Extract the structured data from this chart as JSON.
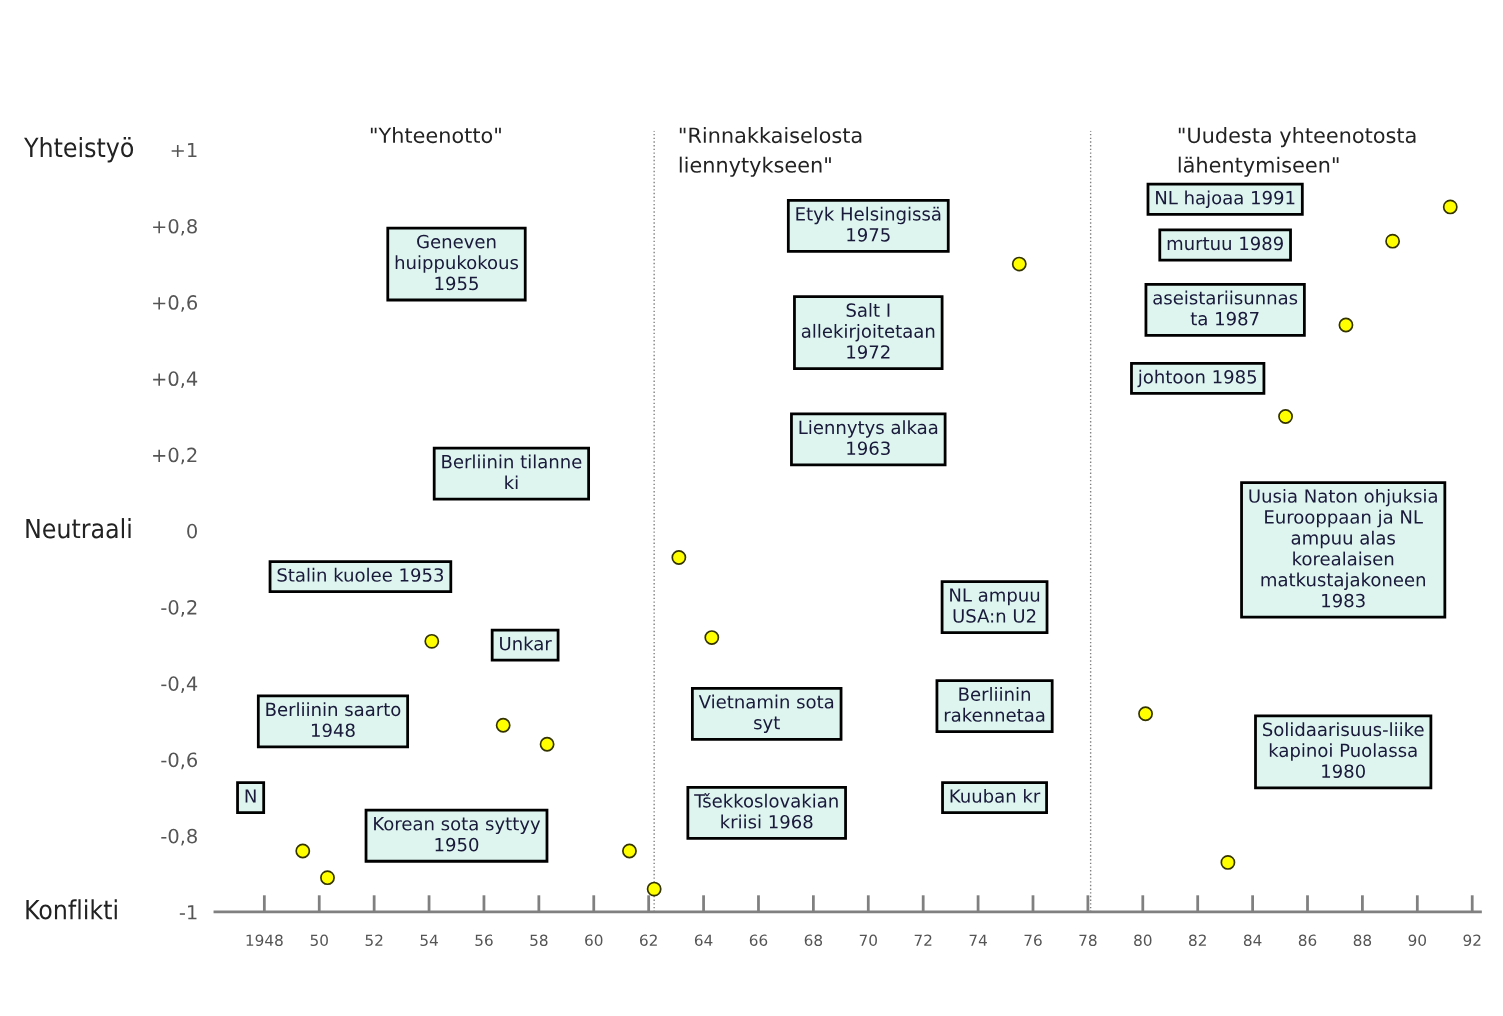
{
  "chart_data": {
    "type": "scatter",
    "marker": "circle",
    "color": "#ffff00",
    "x": [
      1949.4,
      1950.3,
      1954.1,
      1956.7,
      1958.3,
      1961.3,
      1962.2,
      1963.1,
      1964.3,
      1975.5,
      1980.1,
      1983.1,
      1985.2,
      1987.4,
      1989.1,
      1991.2
    ],
    "values": [
      -0.84,
      -0.91,
      -0.29,
      -0.51,
      -0.56,
      -0.84,
      -0.94,
      -0.07,
      -0.28,
      0.7,
      -0.48,
      -0.87,
      0.3,
      0.54,
      0.76,
      0.85
    ],
    "xlim": [
      1946.2,
      1992.3
    ],
    "ylim": [
      -1,
      1.05
    ],
    "xticks": [
      1948,
      {
        "value": 1950,
        "label": "50"
      },
      {
        "value": 1952,
        "label": "52"
      },
      {
        "value": 1954,
        "label": "54"
      },
      {
        "value": 1956,
        "label": "56"
      },
      {
        "value": 1958,
        "label": "58"
      },
      {
        "value": 1960,
        "label": "60"
      },
      {
        "value": 1962,
        "label": "62"
      },
      {
        "value": 1964,
        "label": "64"
      },
      {
        "value": 1966,
        "label": "66"
      },
      {
        "value": 1968,
        "label": "68"
      },
      {
        "value": 1970,
        "label": "70"
      },
      {
        "value": 1972,
        "label": "72"
      },
      {
        "value": 1974,
        "label": "74"
      },
      {
        "value": 1976,
        "label": "76"
      },
      {
        "value": 1978,
        "label": "78"
      },
      {
        "value": 1980,
        "label": "80"
      },
      {
        "value": 1982,
        "label": "82"
      },
      {
        "value": 1984,
        "label": "84"
      },
      {
        "value": 1986,
        "label": "86"
      },
      {
        "value": 1988,
        "label": "88"
      },
      {
        "value": 1990,
        "label": "90"
      },
      {
        "value": 1992,
        "label": "92"
      }
    ],
    "yticks": [
      {
        "value": 1,
        "label": "+1"
      },
      {
        "value": 0.8,
        "label": "+0,8"
      },
      {
        "value": 0.6,
        "label": "+0,6"
      },
      {
        "value": 0.4,
        "label": "+0,4"
      },
      {
        "value": 0.2,
        "label": "+0,2"
      },
      0,
      {
        "value": -0.2,
        "label": "-0,2"
      },
      {
        "value": -0.4,
        "label": "-0,4"
      },
      {
        "value": -0.6,
        "label": "-0,6"
      },
      {
        "value": -0.8,
        "label": "-0,8"
      },
      -1
    ],
    "ref_lines": [
      {
        "axis": "x",
        "value": 1962.2,
        "color": "#808080",
        "line_style": "dotted"
      },
      {
        "axis": "x",
        "value": 1978.1,
        "color": "#808080",
        "line_style": "dotted"
      }
    ],
    "annotations": [
      "\"Yhteenotto\"",
      "\"Rinnakkaiselosta\nliennytykseen\"",
      "\"Uudesta yhteenotosta\nlähentymiseen\"",
      "Yhteistyö",
      "Neutraali",
      "Konflikti",
      "Geneven\nhuippukokous\n1955",
      "Etyk Helsingissä\n1975",
      "Salt I\nallekirjoitetaan\n1972",
      "NL hajoaa 1991",
      "murtuu 1989",
      "aseistariisunnas\nta 1987",
      "johtoon 1985",
      "Liennytys alkaa\n1963",
      "Stalin kuolee 1953",
      "Vietnamin sota\nsyt",
      "Tšekkoslovakian\nkriisi 1968",
      "Unkar",
      "Berliinin tilanne\nki",
      "Berliinin saarto\n1948",
      "NL ampuu\nUSA:n U2",
      "N",
      "Korean sota syttyy\n1950",
      "Berliinin\nrakennetaa",
      "Kuuban kr",
      "Uusia Naton ohjuksia\nEurooppaan ja NL\nampuu alas\nkorealaisen\nmatkustajakoneen\n1983",
      "Solidaarisuus-liike\nkapinoi Puolassa\n1980"
    ]
  }
}
